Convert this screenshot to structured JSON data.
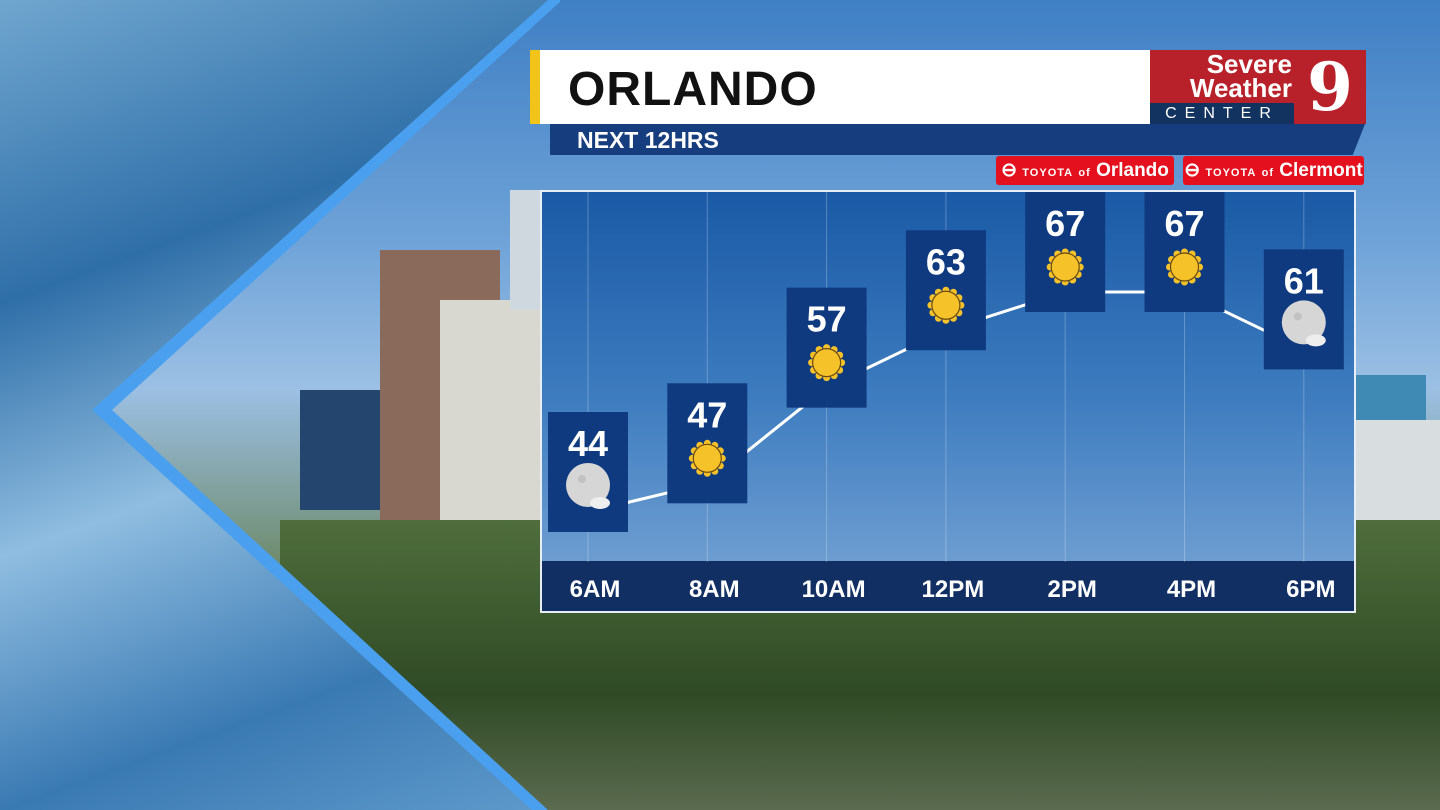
{
  "header": {
    "title": "ORLANDO",
    "subtitle": "NEXT 12HRS"
  },
  "logo": {
    "line1": "Severe",
    "line2": "Weather",
    "line3": "CENTER",
    "number": "9"
  },
  "sponsors": [
    {
      "brand": "TOYOTA",
      "of": "of",
      "place": "Orlando"
    },
    {
      "brand": "TOYOTA",
      "of": "of",
      "place": "Clermont"
    }
  ],
  "colors": {
    "box": "#0f3a80",
    "sun": "#f6c22a",
    "line": "#ffffff",
    "accent": "#f2c318",
    "brand_red": "#b8202a"
  },
  "chart_data": {
    "type": "line",
    "categories": [
      "6AM",
      "8AM",
      "10AM",
      "12PM",
      "2PM",
      "4PM",
      "6PM"
    ],
    "values": [
      44,
      47,
      57,
      63,
      67,
      67,
      61
    ],
    "icons": [
      "moon-icon",
      "sun-icon",
      "sun-icon",
      "sun-icon",
      "sun-icon",
      "sun-icon",
      "moon-icon"
    ],
    "grid": true
  }
}
